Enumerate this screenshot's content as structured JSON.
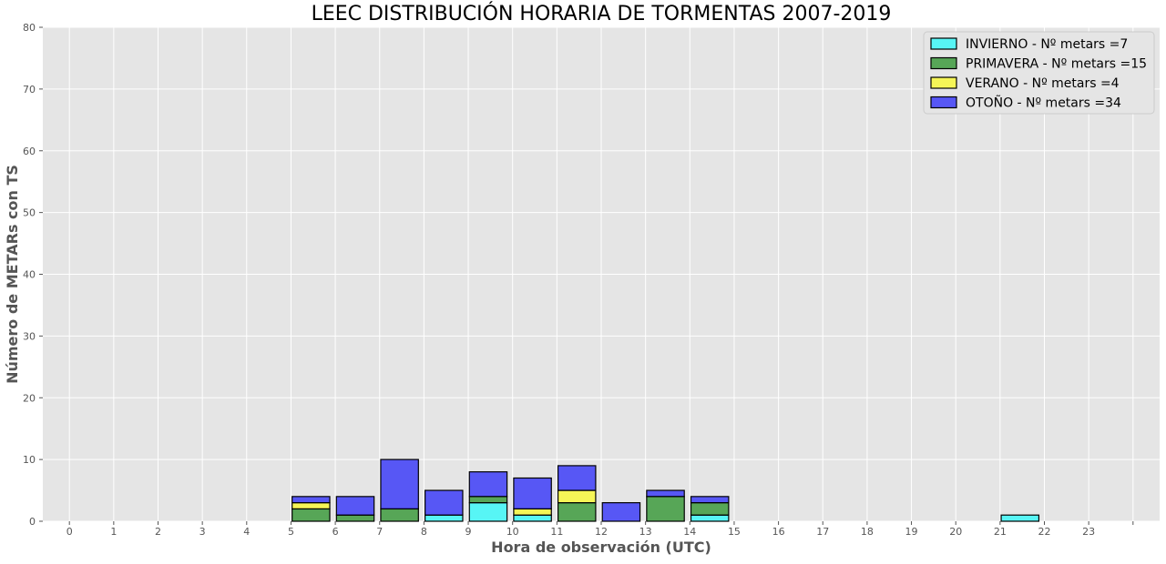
{
  "chart_data": {
    "type": "bar",
    "stacked": true,
    "title": "LEEC DISTRIBUCIÓN HORARIA DE TORMENTAS 2007-2019",
    "xlabel": "Hora de observación (UTC)",
    "ylabel": "Número de METARs con TS",
    "ylim": [
      0,
      80
    ],
    "yticks": [
      0,
      10,
      20,
      30,
      40,
      50,
      60,
      70,
      80
    ],
    "xlim": [
      -0.6,
      24.6
    ],
    "xticks": [
      0,
      1,
      2,
      3,
      4,
      5,
      6,
      7,
      8,
      9,
      10,
      11,
      12,
      13,
      14,
      15,
      16,
      17,
      18,
      19,
      20,
      21,
      22,
      23,
      24
    ],
    "xtick_labels": [
      "0",
      "1",
      "2",
      "3",
      "4",
      "5",
      "6",
      "7",
      "8",
      "9",
      "10",
      "11",
      "12",
      "13",
      "14",
      "15",
      "16",
      "17",
      "18",
      "19",
      "20",
      "21",
      "22",
      "23",
      ""
    ],
    "bar_centers_offset": 0.45,
    "bar_width": 0.85,
    "grid": true,
    "legend_position": "top-right",
    "hours": [
      0,
      1,
      2,
      3,
      4,
      5,
      6,
      7,
      8,
      9,
      10,
      11,
      12,
      13,
      14,
      15,
      16,
      17,
      18,
      19,
      20,
      21,
      22,
      23
    ],
    "series": [
      {
        "name": "INVIERNO - Nº metars =7",
        "color": "#00ffff",
        "values": [
          0,
          0,
          0,
          0,
          0,
          0,
          0,
          0,
          1,
          3,
          1,
          0,
          0,
          0,
          1,
          0,
          0,
          0,
          0,
          0,
          0,
          1,
          0,
          0
        ]
      },
      {
        "name": "PRIMAVERA - Nº metars =15",
        "color": "#008000",
        "values": [
          0,
          0,
          0,
          0,
          0,
          2,
          1,
          2,
          0,
          1,
          0,
          3,
          0,
          4,
          2,
          0,
          0,
          0,
          0,
          0,
          0,
          0,
          0,
          0
        ]
      },
      {
        "name": "VERANO - Nº metars =4",
        "color": "#ffff00",
        "values": [
          0,
          0,
          0,
          0,
          0,
          1,
          0,
          0,
          0,
          0,
          1,
          2,
          0,
          0,
          0,
          0,
          0,
          0,
          0,
          0,
          0,
          0,
          0,
          0
        ]
      },
      {
        "name": "OTOÑO - Nº metars =34",
        "color": "#0000ff",
        "values": [
          0,
          0,
          0,
          0,
          0,
          1,
          3,
          8,
          4,
          4,
          5,
          4,
          3,
          1,
          1,
          0,
          0,
          0,
          0,
          0,
          0,
          0,
          0,
          0
        ]
      }
    ]
  }
}
